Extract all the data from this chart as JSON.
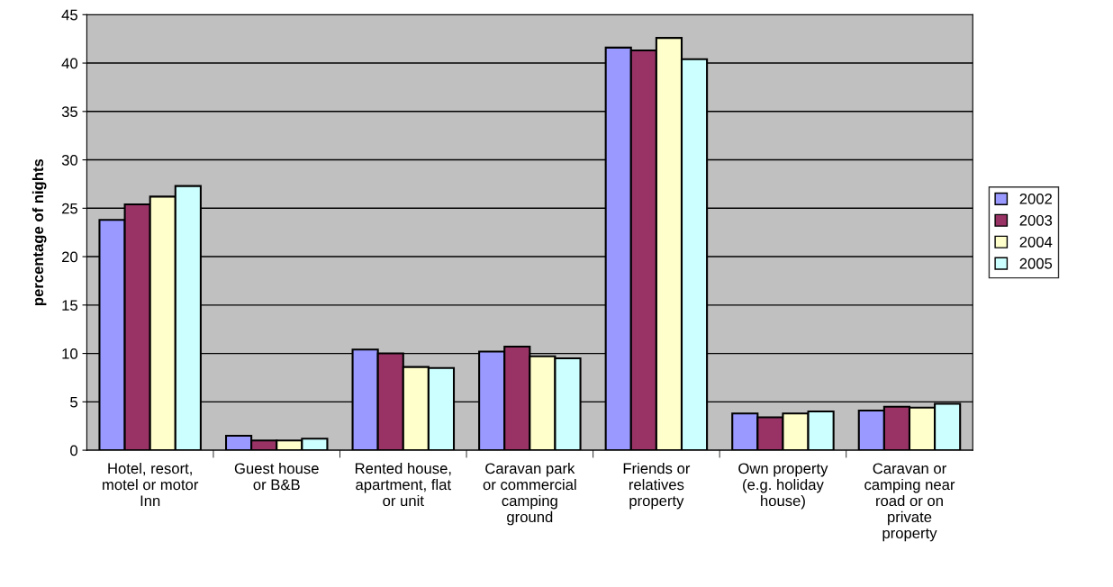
{
  "chart_data": {
    "type": "bar",
    "ylabel": "percentage of nights",
    "categories": [
      "Hotel, resort,\nmotel or motor\nInn",
      "Guest house\nor B&B",
      "Rented house,\napartment, flat\nor unit",
      "Caravan park\nor commercial\ncamping\nground",
      "Friends or\nrelatives\nproperty",
      "Own property\n(e.g. holiday\nhouse)",
      "Caravan or\ncamping near\nroad or on\nprivate\nproperty"
    ],
    "series": [
      {
        "name": "2002",
        "color": "#9999ff",
        "values": [
          23.8,
          1.5,
          10.4,
          10.2,
          41.6,
          3.8,
          4.1
        ]
      },
      {
        "name": "2003",
        "color": "#993366",
        "values": [
          25.4,
          1.0,
          10.0,
          10.7,
          41.3,
          3.4,
          4.5
        ]
      },
      {
        "name": "2004",
        "color": "#ffffcc",
        "values": [
          26.2,
          1.0,
          8.6,
          9.7,
          42.6,
          3.8,
          4.4
        ]
      },
      {
        "name": "2005",
        "color": "#ccffff",
        "values": [
          27.3,
          1.2,
          8.5,
          9.5,
          40.4,
          4.0,
          4.8
        ]
      }
    ],
    "ylim": [
      0,
      45
    ],
    "yticks": [
      0,
      5,
      10,
      15,
      20,
      25,
      30,
      35,
      40,
      45
    ],
    "grid": "y",
    "legend": "right"
  }
}
